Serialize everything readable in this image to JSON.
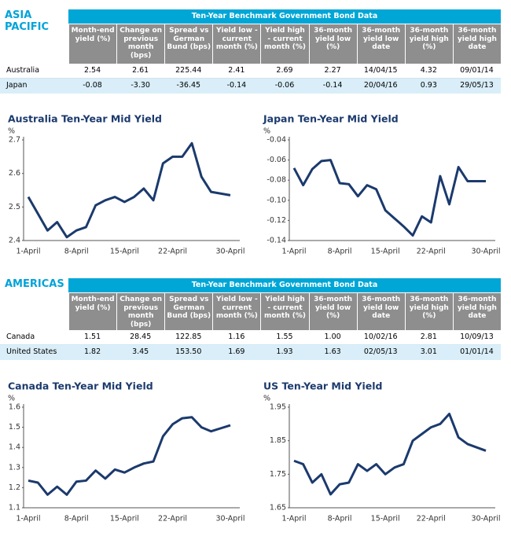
{
  "sections": [
    {
      "heading": "ASIA PACIFIC",
      "table": {
        "title": "Ten-Year Benchmark Government Bond Data",
        "columns": [
          "Month-end yield (%)",
          "Change on previous month (bps)",
          "Spread vs German Bund (bps)",
          "Yield low - current month (%)",
          "Yield high - current month (%)",
          "36-month yield low (%)",
          "36-month yield low date",
          "36-month yield high (%)",
          "36-month yield high date"
        ],
        "rows": [
          [
            "Australia",
            "2.54",
            "2.61",
            "225.44",
            "2.41",
            "2.69",
            "2.27",
            "14/04/15",
            "4.32",
            "09/01/14"
          ],
          [
            "Japan",
            "-0.08",
            "-3.30",
            "-36.45",
            "-0.14",
            "-0.06",
            "-0.14",
            "20/04/16",
            "0.93",
            "29/05/13"
          ]
        ]
      }
    },
    {
      "heading": "AMERICAS",
      "table": {
        "title": "Ten-Year Benchmark Government Bond Data",
        "columns": [
          "Month-end yield (%)",
          "Change on previous month (bps)",
          "Spread vs German Bund (bps)",
          "Yield low - current month (%)",
          "Yield high - current month (%)",
          "36-month yield low (%)",
          "36-month yield low date",
          "36-month yield high (%)",
          "36-month yield high date"
        ],
        "rows": [
          [
            "Canada",
            "1.51",
            "28.45",
            "122.85",
            "1.16",
            "1.55",
            "1.00",
            "10/02/16",
            "2.81",
            "10/09/13"
          ],
          [
            "United States",
            "1.82",
            "3.45",
            "153.50",
            "1.69",
            "1.93",
            "1.63",
            "02/05/13",
            "3.01",
            "01/01/14"
          ]
        ]
      }
    }
  ],
  "chart_data": [
    {
      "type": "line",
      "title": "Australia Ten-Year Mid Yield",
      "y_label": "%",
      "color": "#1b3a6d",
      "categories": [
        "1-April",
        null,
        null,
        null,
        null,
        "8-April",
        null,
        null,
        null,
        null,
        "15-April",
        null,
        null,
        null,
        null,
        "22-April",
        null,
        null,
        null,
        null,
        null,
        "30-April"
      ],
      "values": [
        2.53,
        2.48,
        2.43,
        2.455,
        2.41,
        2.43,
        2.44,
        2.505,
        2.52,
        2.53,
        2.515,
        2.53,
        2.555,
        2.52,
        2.63,
        2.65,
        2.65,
        2.69,
        2.59,
        2.545,
        2.54,
        2.535
      ],
      "ylim": [
        2.4,
        2.7
      ],
      "yticks": [
        2.4,
        2.5,
        2.6,
        2.7
      ]
    },
    {
      "type": "line",
      "title": "Japan Ten-Year Mid Yield",
      "y_label": "%",
      "color": "#1b3a6d",
      "categories": [
        "1-April",
        null,
        null,
        null,
        null,
        "8-April",
        null,
        null,
        null,
        null,
        "15-April",
        null,
        null,
        null,
        null,
        "22-April",
        null,
        null,
        null,
        null,
        null,
        "30-April"
      ],
      "values": [
        -0.068,
        -0.085,
        -0.069,
        -0.061,
        -0.06,
        -0.083,
        -0.084,
        -0.096,
        -0.085,
        -0.089,
        -0.11,
        -0.118,
        -0.126,
        -0.135,
        -0.116,
        -0.122,
        -0.076,
        -0.104,
        -0.067,
        -0.081,
        -0.081,
        -0.081
      ],
      "ylim": [
        -0.14,
        -0.04
      ],
      "yticks": [
        -0.14,
        -0.12,
        {
          "value": -0.1,
          "label": "-0.10"
        },
        -0.08,
        -0.06,
        -0.04
      ]
    },
    {
      "type": "line",
      "title": "Canada Ten-Year Mid Yield",
      "y_label": "%",
      "color": "#1b3a6d",
      "categories": [
        "1-April",
        null,
        null,
        null,
        null,
        "8-April",
        null,
        null,
        null,
        null,
        "15-April",
        null,
        null,
        null,
        null,
        "22-April",
        null,
        null,
        null,
        null,
        null,
        "30-April"
      ],
      "values": [
        1.235,
        1.225,
        1.165,
        1.205,
        1.165,
        1.23,
        1.235,
        1.285,
        1.245,
        1.29,
        1.275,
        1.3,
        1.32,
        1.33,
        1.455,
        1.515,
        1.545,
        1.55,
        1.5,
        1.48,
        1.495,
        1.51
      ],
      "ylim": [
        1.1,
        1.6
      ],
      "yticks": [
        1.1,
        1.2,
        1.3,
        1.4,
        1.5,
        1.6
      ]
    },
    {
      "type": "line",
      "title": "US Ten-Year Mid Yield",
      "y_label": "%",
      "color": "#1b3a6d",
      "categories": [
        "1-April",
        null,
        null,
        null,
        null,
        "8-April",
        null,
        null,
        null,
        null,
        "15-April",
        null,
        null,
        null,
        null,
        "22-April",
        null,
        null,
        null,
        null,
        null,
        "30-April"
      ],
      "values": [
        1.79,
        1.78,
        1.725,
        1.75,
        1.69,
        1.72,
        1.725,
        1.78,
        1.76,
        1.78,
        1.75,
        1.77,
        1.78,
        1.85,
        1.87,
        1.89,
        1.9,
        1.93,
        1.86,
        1.84,
        1.83,
        1.82
      ],
      "ylim": [
        1.65,
        1.95
      ],
      "yticks": [
        1.65,
        1.75,
        1.85,
        1.95
      ]
    }
  ]
}
